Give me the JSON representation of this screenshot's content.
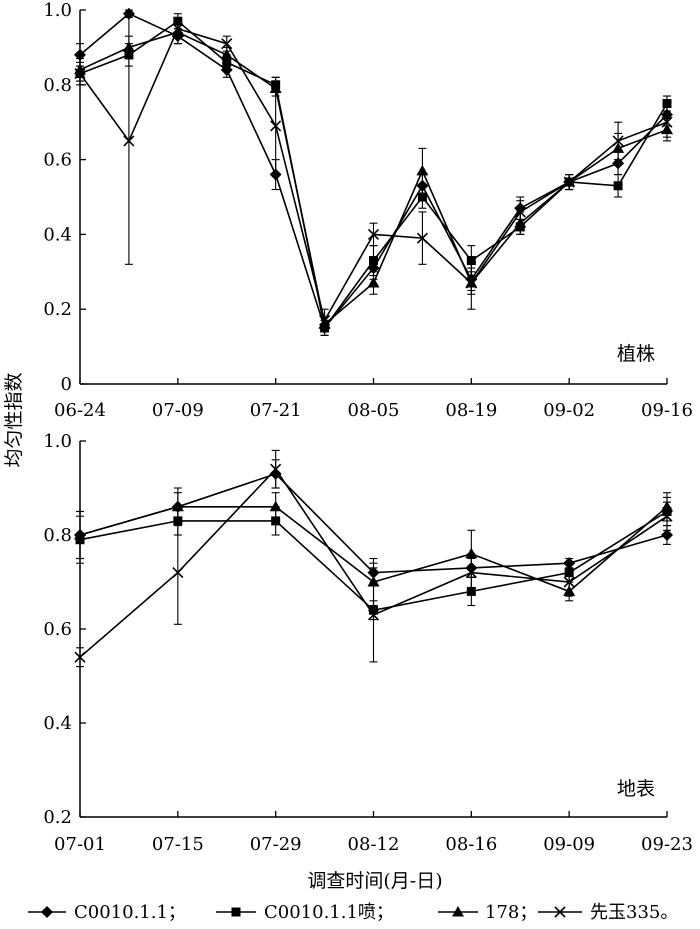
{
  "ylabel": "均匀性指数",
  "xlabel": "调查时间(月-日)",
  "legend": [
    {
      "name": "C0010.1.1；",
      "marker": "diamond"
    },
    {
      "name": "C0010.1.1喷；",
      "marker": "square"
    },
    {
      "name": "178；",
      "marker": "triangle"
    },
    {
      "name": "先玉335。",
      "marker": "x"
    }
  ],
  "colors": {
    "line": "#000000",
    "background": "#ffffff"
  },
  "chart_data": [
    {
      "type": "line",
      "panel_label": "植株",
      "ylim": [
        0,
        1.0
      ],
      "yticks": [
        0,
        0.2,
        0.4,
        0.6,
        0.8,
        1.0
      ],
      "ytick_labels": [
        "0",
        "0.2",
        "0.4",
        "0.6",
        "0.8",
        "1.0"
      ],
      "x_tick_labels": [
        "06-24",
        "07-09",
        "07-21",
        "08-05",
        "08-19",
        "09-02",
        "09-16"
      ],
      "x_tick_positions": [
        0,
        2,
        4,
        6,
        8,
        10,
        12
      ],
      "xlim": [
        0,
        12
      ],
      "x": [
        0,
        1,
        2,
        3,
        4,
        5,
        6,
        7,
        8,
        9,
        10,
        11,
        12
      ],
      "series": [
        {
          "name": "C0010.1.1",
          "marker": "diamond",
          "values": [
            0.88,
            0.99,
            0.93,
            0.84,
            0.56,
            0.15,
            0.31,
            0.53,
            0.28,
            0.47,
            0.54,
            0.59,
            0.72
          ],
          "errors": [
            0.03,
            0.01,
            0.02,
            0.02,
            0.04,
            0.02,
            0.03,
            0.03,
            0.03,
            0.03,
            0.02,
            0.03,
            0.03
          ]
        },
        {
          "name": "C0010.1.1喷",
          "marker": "square",
          "values": [
            0.83,
            0.88,
            0.97,
            0.86,
            0.8,
            0.15,
            0.33,
            0.5,
            0.33,
            0.42,
            0.54,
            0.53,
            0.75
          ],
          "errors": [
            0.03,
            0.03,
            0.02,
            0.02,
            0.02,
            0.02,
            0.04,
            0.03,
            0.04,
            0.02,
            0.02,
            0.03,
            0.02
          ]
        },
        {
          "name": "178",
          "marker": "triangle",
          "values": [
            0.84,
            0.9,
            0.94,
            0.88,
            0.79,
            0.16,
            0.27,
            0.57,
            0.27,
            0.43,
            0.54,
            0.63,
            0.68
          ],
          "errors": [
            0.03,
            0.03,
            0.03,
            0.02,
            0.02,
            0.02,
            0.03,
            0.06,
            0.03,
            0.03,
            0.02,
            0.04,
            0.03
          ]
        },
        {
          "name": "先玉335",
          "marker": "x",
          "values": [
            0.83,
            0.65,
            0.95,
            0.91,
            0.69,
            0.17,
            0.4,
            0.39,
            0.27,
            0.46,
            0.54,
            0.65,
            0.7
          ],
          "errors": [
            0.02,
            0.33,
            0.02,
            0.02,
            0.13,
            0.03,
            0.03,
            0.07,
            0.07,
            0.03,
            0.02,
            0.05,
            0.04
          ]
        }
      ]
    },
    {
      "type": "line",
      "panel_label": "地表",
      "ylim": [
        0.2,
        1.0
      ],
      "yticks": [
        0.2,
        0.4,
        0.6,
        0.8,
        1.0
      ],
      "ytick_labels": [
        "0.2",
        "0.4",
        "0.6",
        "0.8",
        "1.0"
      ],
      "x_tick_labels": [
        "07-01",
        "07-15",
        "07-29",
        "08-12",
        "08-16",
        "09-09",
        "09-23"
      ],
      "x_tick_positions": [
        0,
        1,
        2,
        3,
        4,
        5,
        6
      ],
      "xlim": [
        0,
        6
      ],
      "x": [
        0,
        1,
        2,
        3,
        4,
        5,
        6
      ],
      "series": [
        {
          "name": "C0010.1.1",
          "marker": "diamond",
          "values": [
            0.8,
            0.86,
            0.93,
            0.72,
            0.73,
            0.74,
            0.8
          ],
          "errors": [
            0.05,
            0.03,
            0.03,
            0.02,
            0.02,
            0.01,
            0.02
          ]
        },
        {
          "name": "C0010.1.1喷",
          "marker": "square",
          "values": [
            0.79,
            0.83,
            0.83,
            0.64,
            0.68,
            0.72,
            0.85
          ],
          "errors": [
            0.05,
            0.03,
            0.03,
            0.02,
            0.03,
            0.02,
            0.03
          ]
        },
        {
          "name": "178",
          "marker": "triangle",
          "values": [
            0.8,
            0.86,
            0.86,
            0.7,
            0.76,
            0.68,
            0.86
          ],
          "errors": [
            0.05,
            0.04,
            0.03,
            0.05,
            0.05,
            0.02,
            0.03
          ]
        },
        {
          "name": "先玉335",
          "marker": "x",
          "values": [
            0.54,
            0.72,
            0.94,
            0.63,
            0.72,
            0.7,
            0.84
          ],
          "errors": [
            0.02,
            0.11,
            0.04,
            0.1,
            0.04,
            0.03,
            0.03
          ]
        }
      ]
    }
  ]
}
